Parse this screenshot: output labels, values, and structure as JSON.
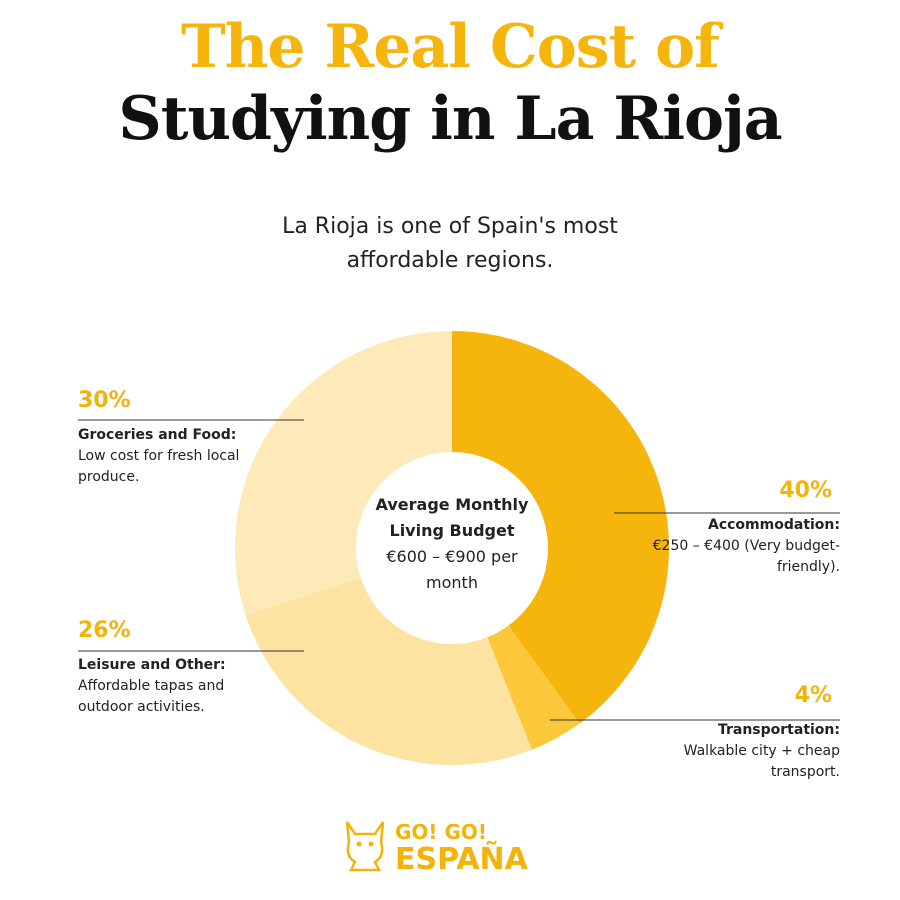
{
  "chart_data": {
    "type": "pie",
    "title": "The Real Cost of",
    "title_line2": "Studying in La Rioja",
    "subtitle": "La Rioja is one of Spain's most affordable regions.",
    "center_title": "Average Monthly Living Budget",
    "center_text": "€600 – €900 per month",
    "categories": [
      "Accommodation:",
      "Transportation:",
      "Leisure and Other:",
      "Groceries and Food:"
    ],
    "descriptions": [
      "€250 – €400 (Very budget-friendly).",
      "Walkable city + cheap transport.",
      "Affordable tapas and outdoor activities.",
      "Low cost for fresh local produce."
    ],
    "values": [
      40,
      4,
      26,
      30
    ],
    "value_labels": [
      "40%",
      "4%",
      "26%",
      "30%"
    ],
    "colors": [
      "#f6b50c",
      "#fcc93c",
      "#fde3a1",
      "#fee9b8"
    ],
    "donut": true,
    "logo_top": "GO! GO!",
    "logo_bottom": "ESPAÑA"
  }
}
